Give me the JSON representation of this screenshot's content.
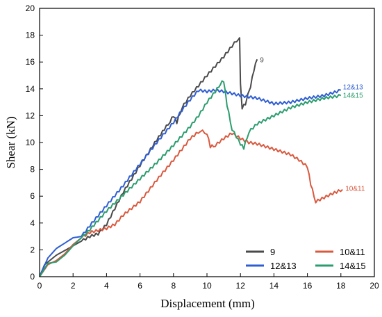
{
  "chart_data": {
    "type": "line",
    "xlabel": "Displacement (mm)",
    "ylabel": "Shear (kN)",
    "xlim": [
      0,
      20
    ],
    "ylim": [
      0,
      20
    ],
    "xticks": [
      "0",
      "2",
      "4",
      "6",
      "8",
      "10",
      "12",
      "14",
      "16",
      "18",
      "20"
    ],
    "yticks": [
      "0",
      "2",
      "4",
      "6",
      "8",
      "10",
      "12",
      "14",
      "16",
      "18",
      "20"
    ],
    "grid": false,
    "legend_position": "bottom-right",
    "series": [
      {
        "name": "9",
        "end_label": "9",
        "color": "#4a4a4a",
        "points": [
          [
            0,
            0
          ],
          [
            0.3,
            0.9
          ],
          [
            1,
            1.6
          ],
          [
            2,
            2.3
          ],
          [
            3,
            3.0
          ],
          [
            3.5,
            3.2
          ],
          [
            4,
            3.9
          ],
          [
            4.5,
            5.1
          ],
          [
            5,
            6.3
          ],
          [
            6,
            8.3
          ],
          [
            7,
            10.2
          ],
          [
            7.8,
            11.6
          ],
          [
            8,
            12.0
          ],
          [
            8.2,
            11.5
          ],
          [
            8.5,
            12.6
          ],
          [
            9,
            13.5
          ],
          [
            10,
            15.0
          ],
          [
            11,
            16.4
          ],
          [
            11.5,
            17.2
          ],
          [
            11.9,
            17.8
          ],
          [
            11.95,
            17.9
          ],
          [
            12,
            14.5
          ],
          [
            12.1,
            12.6
          ],
          [
            12.3,
            12.9
          ],
          [
            12.6,
            14.2
          ],
          [
            12.9,
            16.0
          ],
          [
            13.0,
            16.2
          ]
        ]
      },
      {
        "name": "10&11",
        "end_label": "10&11",
        "color": "#d9593f",
        "points": [
          [
            0,
            0
          ],
          [
            0.5,
            0.9
          ],
          [
            1,
            1.2
          ],
          [
            1.5,
            1.7
          ],
          [
            2,
            2.4
          ],
          [
            2.5,
            2.9
          ],
          [
            3,
            3.3
          ],
          [
            4,
            3.6
          ],
          [
            4.5,
            3.9
          ],
          [
            5,
            4.6
          ],
          [
            6,
            5.6
          ],
          [
            7,
            7.2
          ],
          [
            8,
            8.7
          ],
          [
            9,
            10.3
          ],
          [
            9.6,
            10.9
          ],
          [
            10,
            10.7
          ],
          [
            10.2,
            9.7
          ],
          [
            10.5,
            9.8
          ],
          [
            11,
            10.3
          ],
          [
            11.5,
            10.7
          ],
          [
            12,
            10.3
          ],
          [
            12.5,
            10.0
          ],
          [
            13,
            9.9
          ],
          [
            14,
            9.5
          ],
          [
            15,
            9.1
          ],
          [
            15.5,
            8.7
          ],
          [
            16.0,
            8.2
          ],
          [
            16.2,
            6.9
          ],
          [
            16.5,
            5.6
          ],
          [
            17,
            5.9
          ],
          [
            17.5,
            6.2
          ],
          [
            18.1,
            6.5
          ]
        ]
      },
      {
        "name": "12&13",
        "end_label": "12&13",
        "color": "#2f5ed3",
        "points": [
          [
            0,
            0
          ],
          [
            0.5,
            1.4
          ],
          [
            1,
            2.1
          ],
          [
            2,
            2.9
          ],
          [
            2.5,
            3.0
          ],
          [
            3,
            3.8
          ],
          [
            4,
            5.3
          ],
          [
            5,
            6.8
          ],
          [
            6,
            8.4
          ],
          [
            7,
            10.0
          ],
          [
            8,
            11.5
          ],
          [
            8.5,
            12.4
          ],
          [
            9,
            13.2
          ],
          [
            9.5,
            13.9
          ],
          [
            10,
            13.8
          ],
          [
            10.5,
            13.9
          ],
          [
            11,
            13.8
          ],
          [
            12,
            13.5
          ],
          [
            12.5,
            13.4
          ],
          [
            13,
            13.3
          ],
          [
            14,
            12.9
          ],
          [
            15,
            13.0
          ],
          [
            16,
            13.3
          ],
          [
            17,
            13.5
          ],
          [
            18,
            13.9
          ]
        ]
      },
      {
        "name": "14&15",
        "end_label": "14&15",
        "color": "#2a9d6e",
        "points": [
          [
            0,
            0
          ],
          [
            0.5,
            1.0
          ],
          [
            1,
            1.1
          ],
          [
            1.5,
            1.6
          ],
          [
            2,
            2.3
          ],
          [
            3,
            3.5
          ],
          [
            4,
            4.9
          ],
          [
            5,
            6.1
          ],
          [
            6,
            7.3
          ],
          [
            7,
            8.5
          ],
          [
            8,
            9.8
          ],
          [
            9,
            11.2
          ],
          [
            9.5,
            12.0
          ],
          [
            10,
            13.0
          ],
          [
            10.5,
            13.8
          ],
          [
            10.8,
            14.4
          ],
          [
            11,
            14.6
          ],
          [
            11.2,
            12.8
          ],
          [
            11.5,
            11.0
          ],
          [
            12,
            9.9
          ],
          [
            12.2,
            9.6
          ],
          [
            12.5,
            10.8
          ],
          [
            13,
            11.4
          ],
          [
            14,
            12.0
          ],
          [
            15,
            12.6
          ],
          [
            16,
            13.0
          ],
          [
            17,
            13.3
          ],
          [
            18,
            13.5
          ]
        ]
      }
    ]
  }
}
